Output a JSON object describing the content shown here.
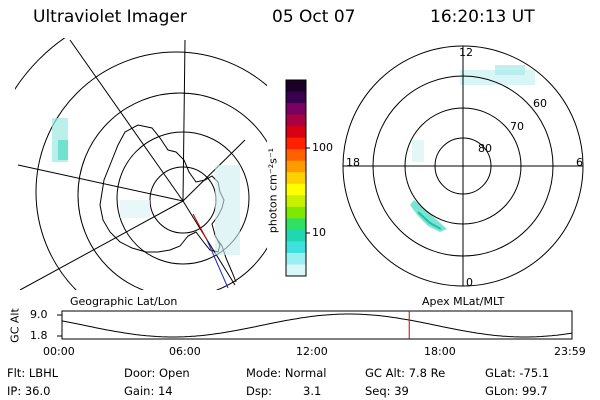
{
  "header": {
    "title": "Ultraviolet Imager",
    "date": "05 Oct 07",
    "time": "16:20:13 UT"
  },
  "colorbar": {
    "unit_label": "photon cm⁻²s⁻¹",
    "ticks": [
      "100",
      "10"
    ],
    "colors": [
      "#1a0026",
      "#3a0050",
      "#7a0060",
      "#a80040",
      "#d80010",
      "#ff2000",
      "#ff6000",
      "#ff9a00",
      "#ffd000",
      "#ffff00",
      "#c8f000",
      "#80e800",
      "#30e060",
      "#20d8b0",
      "#40e0e0",
      "#9af0f0",
      "#d8f8f8"
    ]
  },
  "polar_plot": {
    "mlt_labels": [
      "12",
      "18",
      "6",
      "0"
    ],
    "mlat_labels": [
      "60",
      "70",
      "80"
    ]
  },
  "labels": {
    "geographic": "Geographic Lat/Lon",
    "apex": "Apex MLat/MLT"
  },
  "altitude_strip": {
    "axis_label": "GC Alt",
    "ymax": "9.0",
    "ymin": "1.8",
    "time_ticks": [
      "00:00",
      "06:00",
      "12:00",
      "18:00",
      "23:59"
    ],
    "current_time_hour": 16.34
  },
  "info": {
    "filter": "Flt: LBHL",
    "ip": "IP: 36.0",
    "door": "Door: Open",
    "gain": "Gain: 14",
    "mode": "Mode: Normal",
    "dsp_label": "Dsp:",
    "dsp_value": "3.1",
    "gc_alt": "GC Alt: 7.8 Re",
    "seq": "Seq: 39",
    "glat": "GLat: -75.1",
    "glon": "GLon: 99.7"
  }
}
